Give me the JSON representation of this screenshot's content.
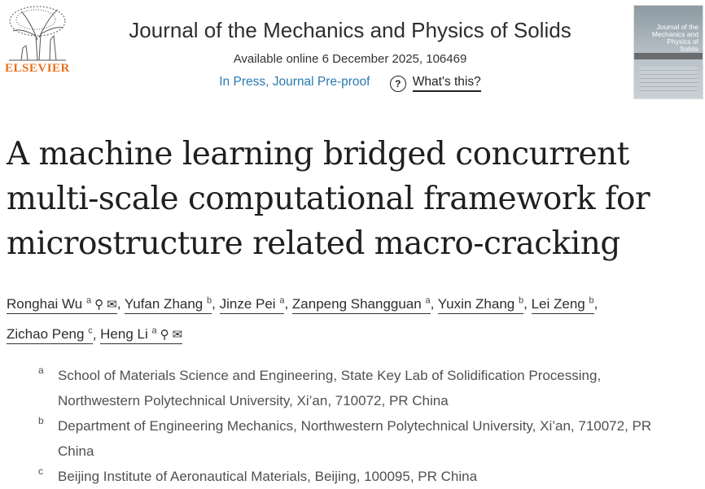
{
  "publisher": {
    "name": "ELSEVIER",
    "brand_color": "#e9711c"
  },
  "journal": {
    "title": "Journal of the Mechanics and Physics of Solids",
    "available": "Available online 6 December 2025, 106469",
    "status": "In Press, Journal Pre-proof",
    "help_icon": "question-circle-icon",
    "help_link": "What's this?",
    "cover_text": "Journal of the Mechanics and Physics of Solids"
  },
  "article": {
    "title": "A machine learning bridged concurrent multi-scale computational framework for microstructure related macro-cracking"
  },
  "authors": [
    {
      "name": "Ronghai Wu",
      "aff": "a",
      "icons": true,
      "sep": ","
    },
    {
      "name": "Yufan Zhang",
      "aff": "b",
      "icons": false,
      "sep": ","
    },
    {
      "name": "Jinze Pei",
      "aff": "a",
      "icons": false,
      "sep": ","
    },
    {
      "name": "Zanpeng Shangguan",
      "aff": "a",
      "icons": false,
      "sep": ","
    },
    {
      "name": "Yuxin Zhang",
      "aff": "b",
      "icons": false,
      "sep": ","
    },
    {
      "name": "Lei Zeng",
      "aff": "b",
      "icons": false,
      "sep": ","
    },
    {
      "name": "Zichao Peng",
      "aff": "c",
      "icons": false,
      "sep": ","
    },
    {
      "name": "Heng Li",
      "aff": "a",
      "icons": true,
      "sep": ""
    }
  ],
  "affiliations": [
    {
      "label": "a",
      "text": "School of Materials Science and Engineering, State Key Lab of Solidification Processing, Northwestern Polytechnical University, Xi’an, 710072, PR China"
    },
    {
      "label": "b",
      "text": "Department of Engineering Mechanics, Northwestern Polytechnical University, Xi’an, 710072, PR China"
    },
    {
      "label": "c",
      "text": "Beijing Institute of Aeronautical Materials, Beijing, 100095, PR China"
    }
  ]
}
